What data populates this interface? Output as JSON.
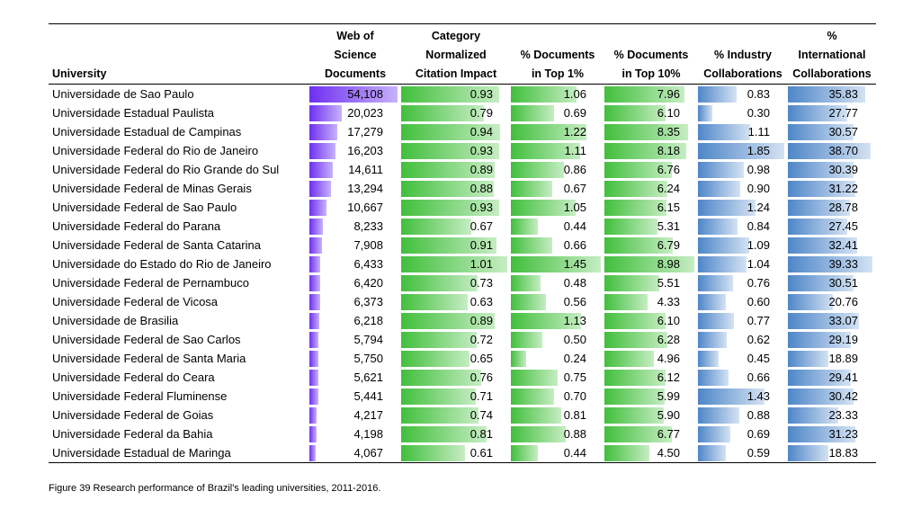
{
  "table": {
    "headers": [
      [
        "University"
      ],
      [
        "Web of",
        "Science",
        "Documents"
      ],
      [
        "Category",
        "Normalized",
        "Citation Impact"
      ],
      [
        "% Documents",
        "in Top 1%"
      ],
      [
        "% Documents",
        "in Top 10%"
      ],
      [
        "% Industry",
        "Collaborations"
      ],
      [
        "%",
        "International",
        "Collaborations"
      ]
    ],
    "bar_colors": [
      "#6f2ff0",
      "#41bf3c",
      "#41bf3c",
      "#41bf3c",
      "#4e86c8",
      "#4e86c8"
    ],
    "rows": [
      {
        "name": "Universidade de Sao Paulo",
        "values": [
          "54,108",
          "0.93",
          "1.06",
          "7.96",
          "0.83",
          "35.83"
        ]
      },
      {
        "name": "Universidade Estadual Paulista",
        "values": [
          "20,023",
          "0.79",
          "0.69",
          "6.10",
          "0.30",
          "27.77"
        ]
      },
      {
        "name": "Universidade Estadual de Campinas",
        "values": [
          "17,279",
          "0.94",
          "1.22",
          "8.35",
          "1.11",
          "30.57"
        ]
      },
      {
        "name": "Universidade Federal do Rio de Janeiro",
        "values": [
          "16,203",
          "0.93",
          "1.11",
          "8.18",
          "1.85",
          "38.70"
        ]
      },
      {
        "name": "Universidade Federal do Rio Grande do Sul",
        "values": [
          "14,611",
          "0.89",
          "0.86",
          "6.76",
          "0.98",
          "30.39"
        ]
      },
      {
        "name": "Universidade Federal de Minas Gerais",
        "values": [
          "13,294",
          "0.88",
          "0.67",
          "6.24",
          "0.90",
          "31.22"
        ]
      },
      {
        "name": "Universidade Federal de Sao Paulo",
        "values": [
          "10,667",
          "0.93",
          "1.05",
          "6.15",
          "1.24",
          "28.78"
        ]
      },
      {
        "name": "Universidade Federal do Parana",
        "values": [
          "8,233",
          "0.67",
          "0.44",
          "5.31",
          "0.84",
          "27.45"
        ]
      },
      {
        "name": "Universidade Federal de Santa Catarina",
        "values": [
          "7,908",
          "0.91",
          "0.66",
          "6.79",
          "1.09",
          "32.41"
        ]
      },
      {
        "name": "Universidade do Estado do Rio de Janeiro",
        "values": [
          "6,433",
          "1.01",
          "1.45",
          "8.98",
          "1.04",
          "39.33"
        ]
      },
      {
        "name": "Universidade Federal de Pernambuco",
        "values": [
          "6,420",
          "0.73",
          "0.48",
          "5.51",
          "0.76",
          "30.51"
        ]
      },
      {
        "name": "Universidade Federal de Vicosa",
        "values": [
          "6,373",
          "0.63",
          "0.56",
          "4.33",
          "0.60",
          "20.76"
        ]
      },
      {
        "name": "Universidade de Brasilia",
        "values": [
          "6,218",
          "0.89",
          "1.13",
          "6.10",
          "0.77",
          "33.07"
        ]
      },
      {
        "name": "Universidade Federal de Sao Carlos",
        "values": [
          "5,794",
          "0.72",
          "0.50",
          "6.28",
          "0.62",
          "29.19"
        ]
      },
      {
        "name": "Universidade Federal de Santa Maria",
        "values": [
          "5,750",
          "0.65",
          "0.24",
          "4.96",
          "0.45",
          "18.89"
        ]
      },
      {
        "name": "Universidade Federal do Ceara",
        "values": [
          "5,621",
          "0.76",
          "0.75",
          "6.12",
          "0.66",
          "29.41"
        ]
      },
      {
        "name": "Universidade Federal Fluminense",
        "values": [
          "5,441",
          "0.71",
          "0.70",
          "5.99",
          "1.43",
          "30.42"
        ]
      },
      {
        "name": "Universidade Federal de Goias",
        "values": [
          "4,217",
          "0.74",
          "0.81",
          "5.90",
          "0.88",
          "23.33"
        ]
      },
      {
        "name": "Universidade Federal da Bahia",
        "values": [
          "4,198",
          "0.81",
          "0.88",
          "6.77",
          "0.69",
          "31.23"
        ]
      },
      {
        "name": "Universidade Estadual de Maringa",
        "values": [
          "4,067",
          "0.61",
          "0.44",
          "4.50",
          "0.59",
          "18.83"
        ]
      }
    ]
  },
  "caption": "Figure 39 Research performance of Brazil's leading universities, 2011-2016."
}
